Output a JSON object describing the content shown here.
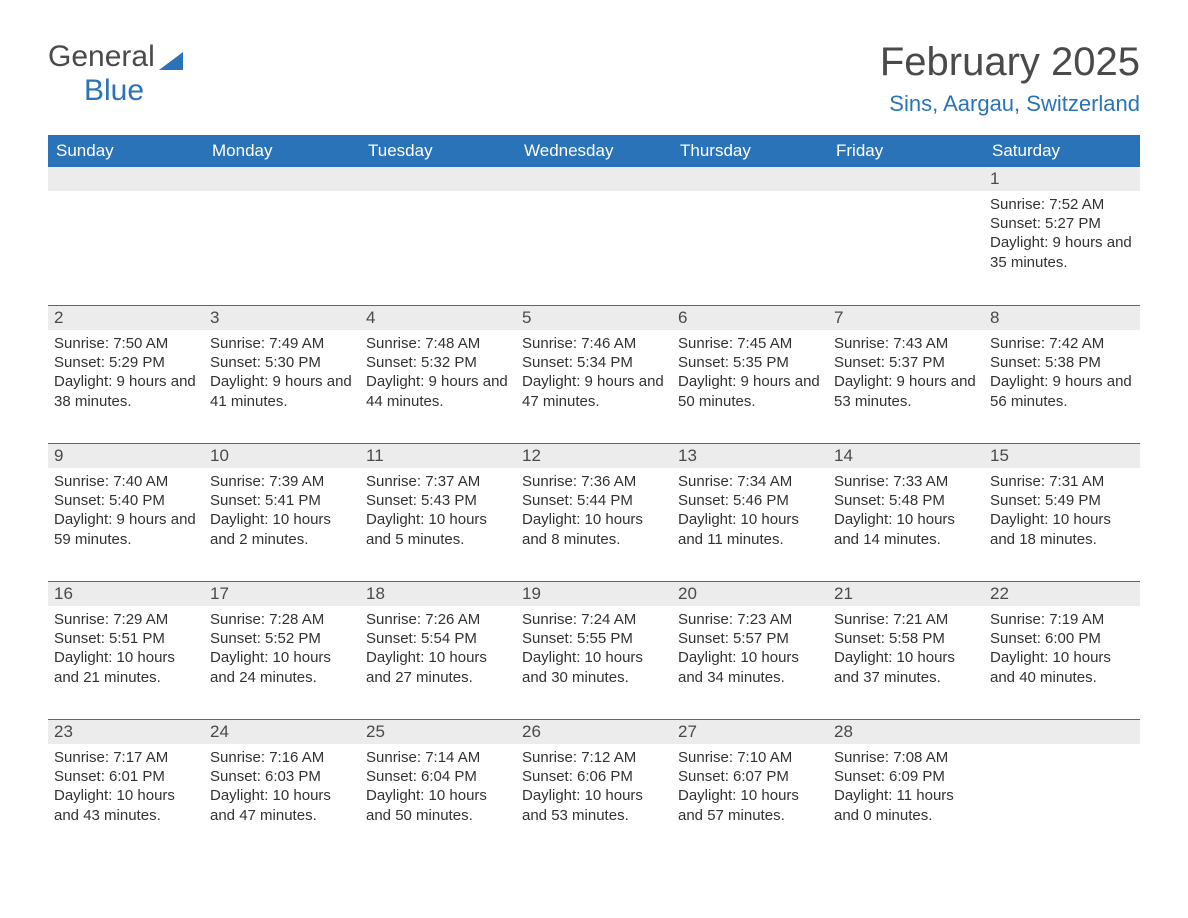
{
  "colors": {
    "primary": "#2b73b8",
    "header_text": "#ffffff",
    "date_band_bg": "#ececec",
    "body_text": "#323232",
    "title_text": "#4a4a4a",
    "page_bg": "#ffffff"
  },
  "logo": {
    "text1": "General",
    "text2": "Blue"
  },
  "title": "February 2025",
  "location": "Sins, Aargau, Switzerland",
  "day_names": [
    "Sunday",
    "Monday",
    "Tuesday",
    "Wednesday",
    "Thursday",
    "Friday",
    "Saturday"
  ],
  "grid": {
    "rows": 5,
    "cols": 7
  },
  "labels": {
    "sunrise": "Sunrise:",
    "sunset": "Sunset:",
    "daylight": "Daylight:"
  },
  "cells": [
    [
      null,
      null,
      null,
      null,
      null,
      null,
      {
        "day": "1",
        "sunrise": "7:52 AM",
        "sunset": "5:27 PM",
        "daylight": "9 hours and 35 minutes."
      }
    ],
    [
      {
        "day": "2",
        "sunrise": "7:50 AM",
        "sunset": "5:29 PM",
        "daylight": "9 hours and 38 minutes."
      },
      {
        "day": "3",
        "sunrise": "7:49 AM",
        "sunset": "5:30 PM",
        "daylight": "9 hours and 41 minutes."
      },
      {
        "day": "4",
        "sunrise": "7:48 AM",
        "sunset": "5:32 PM",
        "daylight": "9 hours and 44 minutes."
      },
      {
        "day": "5",
        "sunrise": "7:46 AM",
        "sunset": "5:34 PM",
        "daylight": "9 hours and 47 minutes."
      },
      {
        "day": "6",
        "sunrise": "7:45 AM",
        "sunset": "5:35 PM",
        "daylight": "9 hours and 50 minutes."
      },
      {
        "day": "7",
        "sunrise": "7:43 AM",
        "sunset": "5:37 PM",
        "daylight": "9 hours and 53 minutes."
      },
      {
        "day": "8",
        "sunrise": "7:42 AM",
        "sunset": "5:38 PM",
        "daylight": "9 hours and 56 minutes."
      }
    ],
    [
      {
        "day": "9",
        "sunrise": "7:40 AM",
        "sunset": "5:40 PM",
        "daylight": "9 hours and 59 minutes."
      },
      {
        "day": "10",
        "sunrise": "7:39 AM",
        "sunset": "5:41 PM",
        "daylight": "10 hours and 2 minutes."
      },
      {
        "day": "11",
        "sunrise": "7:37 AM",
        "sunset": "5:43 PM",
        "daylight": "10 hours and 5 minutes."
      },
      {
        "day": "12",
        "sunrise": "7:36 AM",
        "sunset": "5:44 PM",
        "daylight": "10 hours and 8 minutes."
      },
      {
        "day": "13",
        "sunrise": "7:34 AM",
        "sunset": "5:46 PM",
        "daylight": "10 hours and 11 minutes."
      },
      {
        "day": "14",
        "sunrise": "7:33 AM",
        "sunset": "5:48 PM",
        "daylight": "10 hours and 14 minutes."
      },
      {
        "day": "15",
        "sunrise": "7:31 AM",
        "sunset": "5:49 PM",
        "daylight": "10 hours and 18 minutes."
      }
    ],
    [
      {
        "day": "16",
        "sunrise": "7:29 AM",
        "sunset": "5:51 PM",
        "daylight": "10 hours and 21 minutes."
      },
      {
        "day": "17",
        "sunrise": "7:28 AM",
        "sunset": "5:52 PM",
        "daylight": "10 hours and 24 minutes."
      },
      {
        "day": "18",
        "sunrise": "7:26 AM",
        "sunset": "5:54 PM",
        "daylight": "10 hours and 27 minutes."
      },
      {
        "day": "19",
        "sunrise": "7:24 AM",
        "sunset": "5:55 PM",
        "daylight": "10 hours and 30 minutes."
      },
      {
        "day": "20",
        "sunrise": "7:23 AM",
        "sunset": "5:57 PM",
        "daylight": "10 hours and 34 minutes."
      },
      {
        "day": "21",
        "sunrise": "7:21 AM",
        "sunset": "5:58 PM",
        "daylight": "10 hours and 37 minutes."
      },
      {
        "day": "22",
        "sunrise": "7:19 AM",
        "sunset": "6:00 PM",
        "daylight": "10 hours and 40 minutes."
      }
    ],
    [
      {
        "day": "23",
        "sunrise": "7:17 AM",
        "sunset": "6:01 PM",
        "daylight": "10 hours and 43 minutes."
      },
      {
        "day": "24",
        "sunrise": "7:16 AM",
        "sunset": "6:03 PM",
        "daylight": "10 hours and 47 minutes."
      },
      {
        "day": "25",
        "sunrise": "7:14 AM",
        "sunset": "6:04 PM",
        "daylight": "10 hours and 50 minutes."
      },
      {
        "day": "26",
        "sunrise": "7:12 AM",
        "sunset": "6:06 PM",
        "daylight": "10 hours and 53 minutes."
      },
      {
        "day": "27",
        "sunrise": "7:10 AM",
        "sunset": "6:07 PM",
        "daylight": "10 hours and 57 minutes."
      },
      {
        "day": "28",
        "sunrise": "7:08 AM",
        "sunset": "6:09 PM",
        "daylight": "11 hours and 0 minutes."
      },
      null
    ]
  ]
}
